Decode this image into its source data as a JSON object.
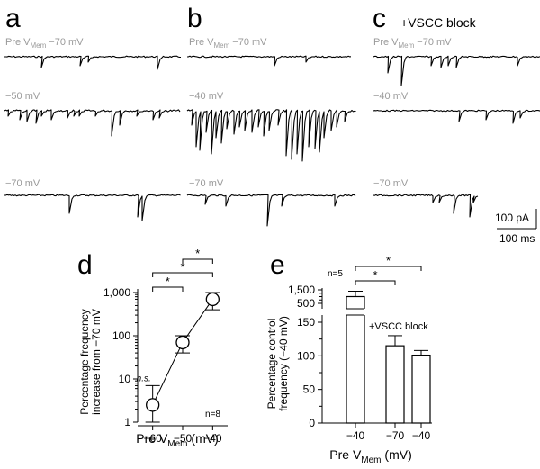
{
  "panels": {
    "a": {
      "letter": "a"
    },
    "b": {
      "letter": "b"
    },
    "c": {
      "letter": "c",
      "title": "+VSCC block"
    }
  },
  "trace_labels": {
    "pre_prefix": "Pre V",
    "mem_sub": "Mem",
    "a_top": "−70 mV",
    "a_mid": "−50 mV",
    "a_bot": "−70 mV",
    "b_top": "−70 mV",
    "b_mid": "−40 mV",
    "b_bot": "−70 mV",
    "c_top": "−70 mV",
    "c_mid": "−40 mV",
    "c_bot": "−70 mV"
  },
  "scale_bar": {
    "current": "100 pA",
    "time": "100 ms"
  },
  "chart_data": [
    {
      "panel": "d",
      "type": "line",
      "scale": "log",
      "xlabel_prefix": "Pre V",
      "xlabel_sub": "Mem",
      "xlabel_suffix": " (mV)",
      "ylabel_line1": "Percentage frequency",
      "ylabel_line2": "increase from −70 mV",
      "x": [
        -60,
        -50,
        -40
      ],
      "y": [
        2.5,
        70,
        700
      ],
      "err_low": [
        1.0,
        40,
        400
      ],
      "err_high": [
        7,
        100,
        1000
      ],
      "xticks": [
        "−60",
        "−50",
        "−40"
      ],
      "yticks": [
        "1",
        "10",
        "100",
        "1,000"
      ],
      "ylim": [
        1,
        1000
      ],
      "annotations": {
        "ns": "n.s.",
        "n": "n=8",
        "star1": "*",
        "star2": "*",
        "star3": "*"
      }
    },
    {
      "panel": "e",
      "type": "bar",
      "xlabel_prefix": "Pre V",
      "xlabel_sub": "Mem",
      "xlabel_suffix": " (mV)",
      "ylabel_line1": "Percentage control",
      "ylabel_line2": "frequency (−40 mV)",
      "categories": [
        "−40",
        "−70",
        "−40"
      ],
      "values": [
        1000,
        115,
        101
      ],
      "err_high": [
        1400,
        130,
        108
      ],
      "group_label": "+VSCC block",
      "yticks": [
        "0",
        "50",
        "100",
        "150",
        "500",
        "1,500"
      ],
      "annotations": {
        "n": "n=5",
        "star1": "*",
        "star2": "*"
      }
    }
  ]
}
